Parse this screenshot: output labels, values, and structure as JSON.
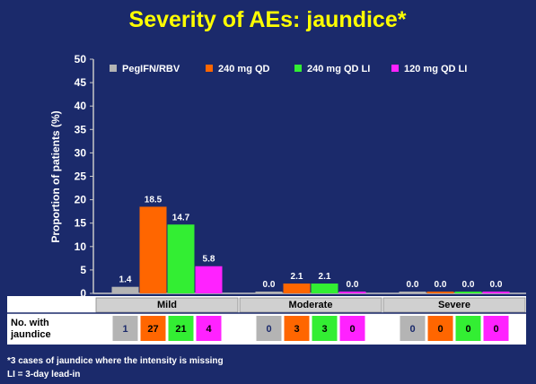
{
  "colors": {
    "background": "#1b2a6b",
    "title": "#ffff00",
    "axis": "#c8c8c8",
    "table_bg": "#ffffff",
    "header_bg": "#d0d0d0"
  },
  "chart_data": {
    "type": "bar",
    "title": "Severity of AEs: jaundice*",
    "ylabel": "Proportion of patients (%)",
    "xlabel": "",
    "ylim": [
      0,
      50
    ],
    "yticks": [
      "0",
      "5",
      "10",
      "15",
      "20",
      "25",
      "30",
      "35",
      "40",
      "45",
      "50"
    ],
    "categories": [
      "Mild",
      "Moderate",
      "Severe"
    ],
    "legend_position": "top",
    "grid": false,
    "series": [
      {
        "name": "PegIFN/RBV",
        "color": "#b4b4b4",
        "values": [
          1.4,
          0.0,
          0.0
        ],
        "labels": [
          "1.4",
          "0.0",
          "0.0"
        ],
        "counts": [
          "1",
          "0",
          "0"
        ]
      },
      {
        "name": "240 mg QD",
        "color": "#ff6600",
        "values": [
          18.5,
          2.1,
          0.0
        ],
        "labels": [
          "18.5",
          "2.1",
          "0.0"
        ],
        "counts": [
          "27",
          "3",
          "0"
        ]
      },
      {
        "name": "240 mg QD LI",
        "color": "#33ee33",
        "values": [
          14.7,
          2.1,
          0.0
        ],
        "labels": [
          "14.7",
          "2.1",
          "0.0"
        ],
        "counts": [
          "21",
          "3",
          "0"
        ]
      },
      {
        "name": "120 mg QD LI",
        "color": "#ff22ff",
        "values": [
          5.8,
          0.0,
          0.0
        ],
        "labels": [
          "5.8",
          "0.0",
          "0.0"
        ],
        "counts": [
          "4",
          "0",
          "0"
        ]
      }
    ],
    "table_row_label": [
      "No. with",
      "jaundice"
    ]
  },
  "footnotes": [
    "*3 cases of jaundice where the intensity is missing",
    "LI = 3-day lead-in"
  ]
}
